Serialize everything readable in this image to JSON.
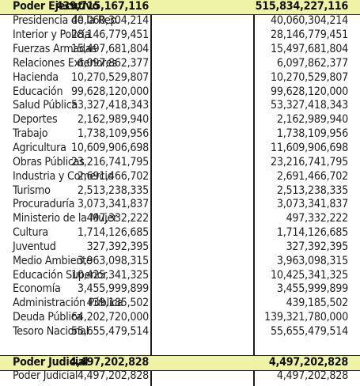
{
  "table": {
    "executive": {
      "label": "Poder Ejecutivo",
      "v1": "439,715,167,116",
      "v2": "515,834,227,116",
      "rows": [
        {
          "name": "Presidencia de la Rep.",
          "v1": "40,060,304,214",
          "v2": "40,060,304,214"
        },
        {
          "name": "Interior y Policía",
          "v1": "28,146,779,451",
          "v2": "28,146,779,451"
        },
        {
          "name": "Fuerzas Armadas",
          "v1": "15,497,681,804",
          "v2": "15,497,681,804"
        },
        {
          "name": "Relaciones Exteriores",
          "v1": "6,097,862,377",
          "v2": "6,097,862,377"
        },
        {
          "name": "Hacienda",
          "v1": "10,270,529,807",
          "v2": "10,270,529,807"
        },
        {
          "name": "Educación",
          "v1": "99,628,120,000",
          "v2": "99,628,120,000"
        },
        {
          "name": "Salud Pública",
          "v1": "53,327,418,343",
          "v2": "53,327,418,343"
        },
        {
          "name": "Deportes",
          "v1": "2,162,989,940",
          "v2": "2,162,989,940"
        },
        {
          "name": "Trabajo",
          "v1": "1,738,109,956",
          "v2": "1,738,109,956"
        },
        {
          "name": "Agricultura",
          "v1": "10,609,906,698",
          "v2": "11,609,906,698"
        },
        {
          "name": "Obras Públicas",
          "v1": "23,216,741,795",
          "v2": "23,216,741,795"
        },
        {
          "name": "Industria y Comercio",
          "v1": "2,691,466,702",
          "v2": "2,691,466,702"
        },
        {
          "name": "Turismo",
          "v1": "2,513,238,335",
          "v2": "2,513,238,335"
        },
        {
          "name": "Procuraduría",
          "v1": "3,073,341,837",
          "v2": "3,073,341,837"
        },
        {
          "name": "Ministerio de la Mujer",
          "v1": "497,332,222",
          "v2": "497,332,222"
        },
        {
          "name": "Cultura",
          "v1": "1,714,126,685",
          "v2": "1,714,126,685"
        },
        {
          "name": "Juventud",
          "v1": "327,392,395",
          "v2": "327,392,395"
        },
        {
          "name": "Medio Ambiente",
          "v1": "3,963,098,315",
          "v2": "3,963,098,315"
        },
        {
          "name": "Educación Superior",
          "v1": "10,425,341,325",
          "v2": "10,425,341,325"
        },
        {
          "name": "Economía",
          "v1": "3,455,999,899",
          "v2": "3,455,999,899"
        },
        {
          "name": "Administración Pública",
          "v1": "439,185,502",
          "v2": "439,185,502"
        },
        {
          "name": "Deuda Pública",
          "v1": "64,202,720,000",
          "v2": "139,321,780,000"
        },
        {
          "name": "Tesoro Nacional",
          "v1": "55,655,479,514",
          "v2": "55,655,479,514"
        }
      ]
    },
    "judicial": {
      "label": "Poder Judicial",
      "v1": "4,497,202,828",
      "v2": "4,497,202,828",
      "rows": [
        {
          "name": "Poder Judicial",
          "v1": "4,497,202,828",
          "v2": "4,497,202,828"
        }
      ]
    }
  },
  "colors": {
    "highlight": "#eef3a6",
    "text": "#1e1e1e",
    "rule": "#1a1a1a"
  }
}
